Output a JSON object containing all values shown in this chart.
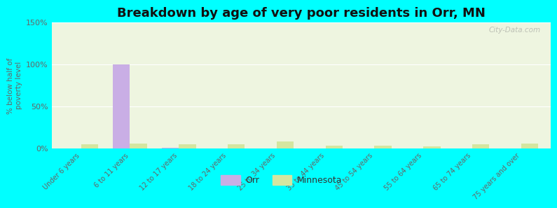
{
  "title": "Breakdown by age of very poor residents in Orr, MN",
  "ylabel": "% below half of\npoverty level",
  "categories": [
    "Under 6 years",
    "6 to 11 years",
    "12 to 17 years",
    "18 to 24 years",
    "25 to 34 years",
    "35 to 44 years",
    "45 to 54 years",
    "55 to 64 years",
    "65 to 74 years",
    "75 years and over"
  ],
  "orr_values": [
    0,
    100,
    1,
    0,
    0,
    0,
    0,
    0,
    0,
    0
  ],
  "mn_values": [
    5,
    6,
    5,
    5,
    9,
    4,
    4,
    3,
    5,
    6
  ],
  "orr_color": "#c9aee5",
  "mn_color": "#d4e6a0",
  "background_outer": "#00ffff",
  "background_plot": "#eef5e0",
  "ylim": [
    0,
    150
  ],
  "yticks": [
    0,
    50,
    100,
    150
  ],
  "title_fontsize": 13,
  "bar_width": 0.35,
  "legend_orr": "Orr",
  "legend_mn": "Minnesota",
  "watermark": "City-Data.com"
}
